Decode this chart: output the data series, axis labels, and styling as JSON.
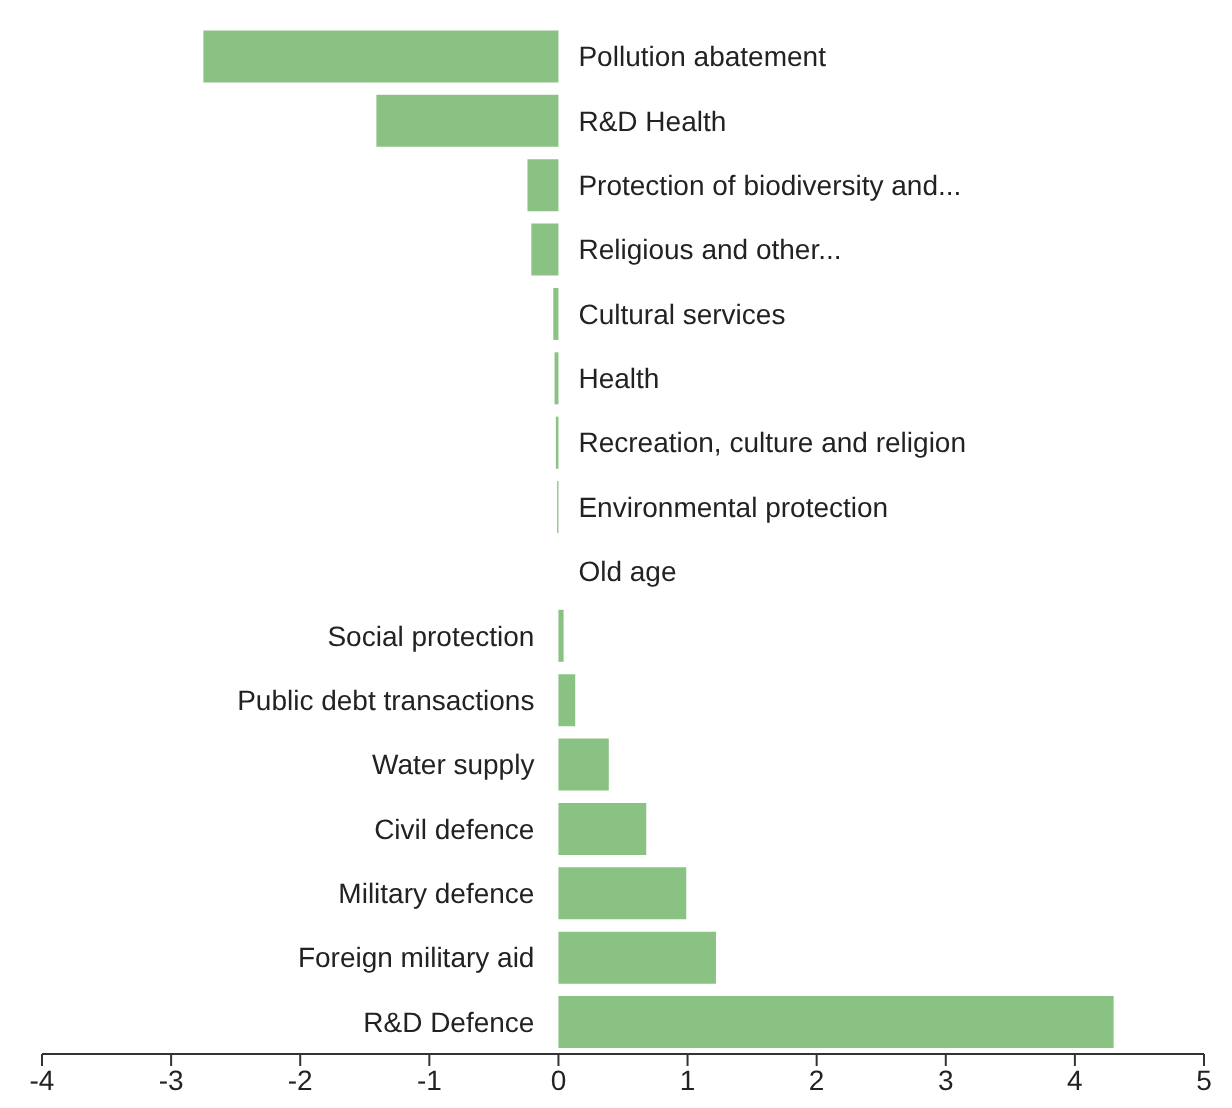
{
  "chart_data": {
    "type": "bar",
    "orientation": "horizontal",
    "categories": [
      "Pollution abatement",
      "R&D Health",
      "Protection of biodiversity and...",
      "Religious and other...",
      "Cultural services",
      "Health",
      "Recreation, culture and religion",
      "Environmental protection",
      "Old age",
      "Social protection",
      "Public debt transactions",
      "Water supply",
      "Civil defence",
      "Military defence",
      "Foreign military aid",
      "R&D Defence"
    ],
    "values": [
      -2.75,
      -1.41,
      -0.24,
      -0.21,
      -0.04,
      -0.03,
      -0.02,
      -0.01,
      0,
      0.04,
      0.13,
      0.39,
      0.68,
      0.99,
      1.22,
      4.3
    ],
    "color": "#89c283",
    "xlim": [
      -4,
      5
    ],
    "xticks": [
      -4,
      -3,
      -2,
      -1,
      0,
      1,
      2,
      3,
      4,
      5
    ],
    "grid": false
  }
}
